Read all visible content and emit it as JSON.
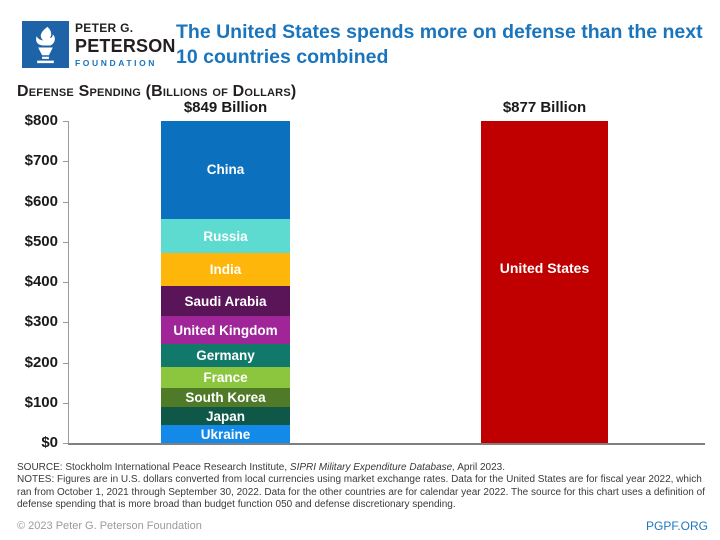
{
  "brand": {
    "name_line1": "PETER G.",
    "name_line2": "PETERSON",
    "name_line3": "FOUNDATION",
    "logo_blue": "#1E62A8"
  },
  "header": {
    "title_lines": [
      "The United States spends more on defense than the next",
      "10 countries combined"
    ],
    "title_color": "#1B75BC"
  },
  "chart_data": {
    "type": "bar",
    "subtype": "stacked-comparison",
    "title": "Defense Spending (Billions of Dollars)",
    "unit": "billions of U.S. dollars",
    "ylim": [
      0,
      800
    ],
    "ytick_labels_top_down": [
      "$800",
      "$700",
      "$600",
      "$500",
      "$400",
      "$300",
      "$200",
      "$100",
      "$0"
    ],
    "grid": false,
    "axis_note": "both bars exceed the $800 axis maximum and are clipped at the top of the plot",
    "bars": [
      {
        "name": "next-10-countries",
        "total_label": "$849 Billion",
        "total": 849,
        "segments_top_to_bottom": [
          {
            "label": "China",
            "value": 292,
            "color": "#0B70BE"
          },
          {
            "label": "Russia",
            "value": 86,
            "color": "#5EDBD1"
          },
          {
            "label": "India",
            "value": 81,
            "color": "#FFB60A"
          },
          {
            "label": "Saudi Arabia",
            "value": 75,
            "color": "#5A1458"
          },
          {
            "label": "United Kingdom",
            "value": 69,
            "color": "#A02598"
          },
          {
            "label": "Germany",
            "value": 56,
            "color": "#11796A"
          },
          {
            "label": "France",
            "value": 54,
            "color": "#8CC63F"
          },
          {
            "label": "South Korea",
            "value": 46,
            "color": "#4F7A27"
          },
          {
            "label": "Japan",
            "value": 46,
            "color": "#0F5847"
          },
          {
            "label": "Ukraine",
            "value": 44,
            "color": "#1389E9"
          }
        ]
      },
      {
        "name": "united-states",
        "total_label": "$877 Billion",
        "total": 877,
        "segments_top_to_bottom": [
          {
            "label": "United States",
            "value": 877,
            "color": "#C00000"
          }
        ]
      }
    ]
  },
  "footer": {
    "source_prefix": "SOURCE: Stockholm International Peace Research Institute, ",
    "source_italic": "SIPRI Military Expenditure Database,",
    "source_suffix": " April 2023.",
    "notes": "NOTES: Figures are in U.S. dollars converted from local currencies using market exchange rates. Data for the United States are for fiscal year 2022, which ran from October 1, 2021 through September 30, 2022. Data for the other countries are for calendar year 2022. The source for this chart uses a definition of defense spending that is more broad than budget function 050 and defense discretionary spending.",
    "copyright": "© 2023 Peter G. Peterson Foundation",
    "site": "PGPF.ORG"
  }
}
